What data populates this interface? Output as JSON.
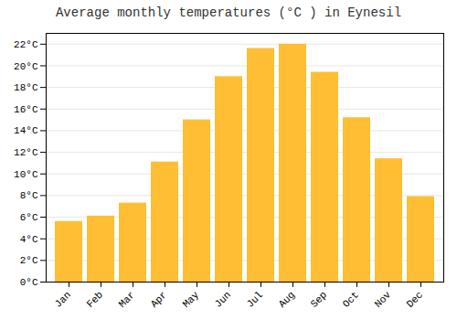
{
  "chart_data": {
    "type": "bar",
    "title": "Average monthly temperatures (°C ) in Eynesil",
    "categories": [
      "Jan",
      "Feb",
      "Mar",
      "Apr",
      "May",
      "Jun",
      "Jul",
      "Aug",
      "Sep",
      "Oct",
      "Nov",
      "Dec"
    ],
    "values": [
      5.6,
      6.1,
      7.3,
      11.1,
      15.0,
      19.0,
      21.6,
      22.0,
      19.4,
      15.2,
      11.4,
      7.9
    ],
    "color": "#FFBE33",
    "ylim": [
      0,
      23
    ],
    "yticks": [
      {
        "value": 0,
        "label": "0°C"
      },
      {
        "value": 2,
        "label": "2°C"
      },
      {
        "value": 4,
        "label": "4°C"
      },
      {
        "value": 6,
        "label": "6°C"
      },
      {
        "value": 8,
        "label": "8°C"
      },
      {
        "value": 10,
        "label": "10°C"
      },
      {
        "value": 12,
        "label": "12°C"
      },
      {
        "value": 14,
        "label": "14°C"
      },
      {
        "value": 16,
        "label": "16°C"
      },
      {
        "value": 18,
        "label": "18°C"
      },
      {
        "value": 20,
        "label": "20°C"
      },
      {
        "value": 22,
        "label": "22°C"
      }
    ],
    "grid": true
  }
}
